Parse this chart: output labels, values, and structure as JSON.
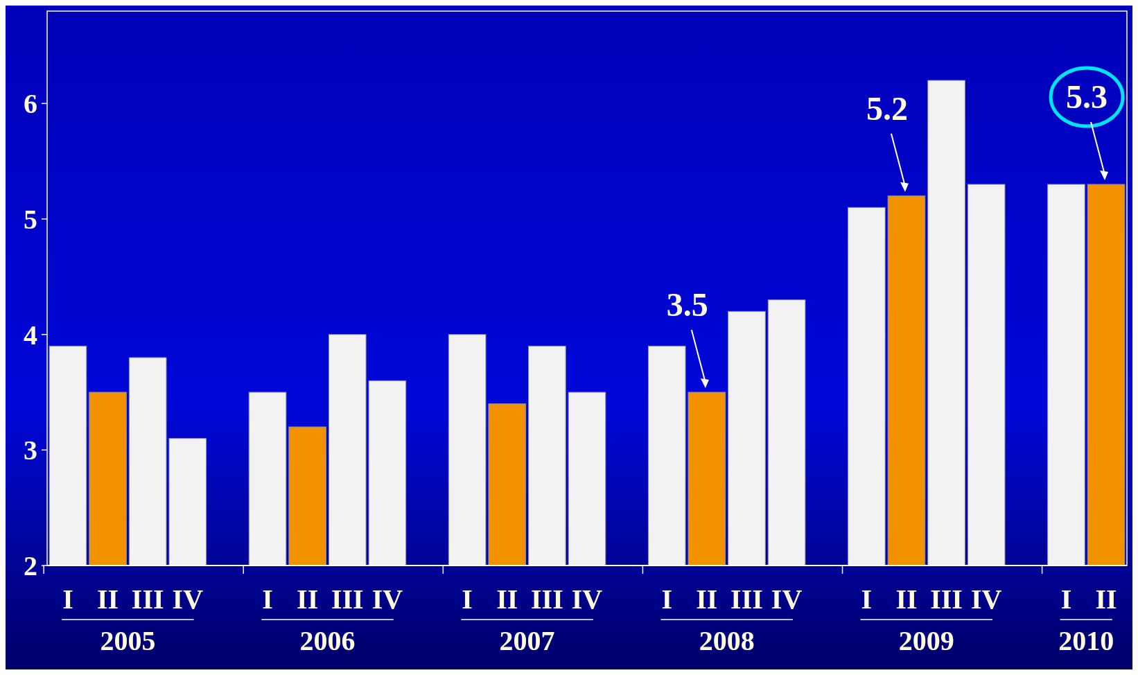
{
  "chart_data": {
    "type": "bar",
    "categories": [
      "I",
      "II",
      "III",
      "IV",
      null,
      "I",
      "II",
      "III",
      "IV",
      null,
      "I",
      "II",
      "III",
      "IV",
      null,
      "I",
      "II",
      "III",
      "IV",
      null,
      "I",
      "II",
      "III",
      "IV",
      null,
      "I",
      "II"
    ],
    "values": [
      3.9,
      3.5,
      3.8,
      3.1,
      null,
      3.5,
      3.2,
      4.0,
      3.6,
      null,
      4.0,
      3.4,
      3.9,
      3.5,
      null,
      3.9,
      3.5,
      4.2,
      4.3,
      null,
      5.1,
      5.2,
      6.2,
      5.3,
      null,
      5.3,
      5.3
    ],
    "colors": [
      "#f2f2f2",
      "#f39200",
      "#f2f2f2",
      "#f2f2f2",
      null,
      "#f2f2f2",
      "#f39200",
      "#f2f2f2",
      "#f2f2f2",
      null,
      "#f2f2f2",
      "#f39200",
      "#f2f2f2",
      "#f2f2f2",
      null,
      "#f2f2f2",
      "#f39200",
      "#f2f2f2",
      "#f2f2f2",
      null,
      "#f2f2f2",
      "#f39200",
      "#f2f2f2",
      "#f2f2f2",
      null,
      "#f2f2f2",
      "#f39200"
    ],
    "value_labels": [
      null,
      null,
      null,
      null,
      null,
      null,
      null,
      null,
      null,
      null,
      null,
      null,
      null,
      null,
      null,
      null,
      "3.5",
      null,
      null,
      null,
      null,
      "5.2",
      null,
      null,
      null,
      null,
      "5.3"
    ],
    "annotations": [
      "2005",
      "2006",
      "2007",
      "2008",
      "2009",
      "2010"
    ],
    "ylim": [
      2,
      6.8
    ],
    "yticks": [
      2,
      3,
      4,
      5,
      6
    ]
  }
}
